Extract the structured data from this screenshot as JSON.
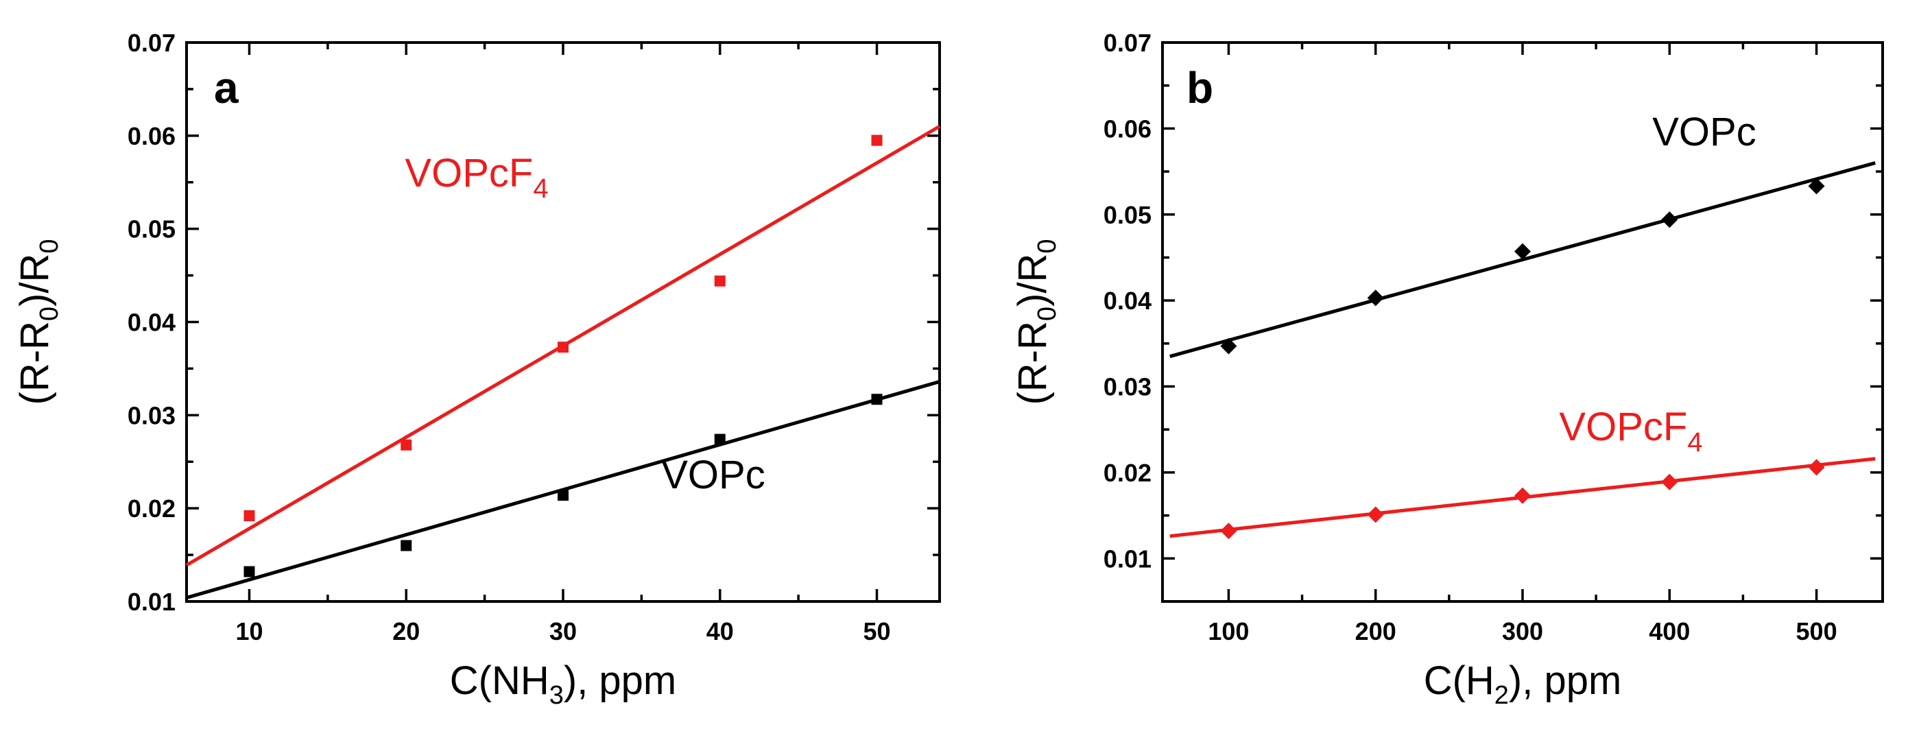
{
  "chart_data": [
    {
      "type": "scatter",
      "panel_label": "a",
      "xlabel": {
        "main": "C(NH",
        "sub": "3",
        "rest": "), ppm"
      },
      "ylabel": {
        "main": "(R-R",
        "sub1": "0",
        "mid": ")/R",
        "sub2": "0"
      },
      "xlim": [
        6,
        54
      ],
      "ylim": [
        0.01,
        0.07
      ],
      "xticks": [
        10,
        20,
        30,
        40,
        50
      ],
      "yticks": [
        0.01,
        0.02,
        0.03,
        0.04,
        0.05,
        0.06,
        0.07
      ],
      "ytick_labels": [
        "0.01",
        "0.02",
        "0.03",
        "0.04",
        "0.05",
        "0.06",
        "0.07"
      ],
      "series": [
        {
          "name": "VOPcF",
          "name_sub": "4",
          "color": "#ee1c1c",
          "marker": "square",
          "x": [
            10,
            20,
            30,
            40,
            50
          ],
          "y": [
            0.0192,
            0.0268,
            0.0373,
            0.0444,
            0.0595
          ],
          "fit": {
            "x": [
              6,
              54
            ],
            "y": [
              0.0139,
              0.061
            ]
          }
        },
        {
          "name": "VOPc",
          "name_sub": "",
          "color": "#000000",
          "marker": "square",
          "x": [
            10,
            20,
            30,
            40,
            50
          ],
          "y": [
            0.0132,
            0.016,
            0.0214,
            0.0274,
            0.0317
          ],
          "fit": {
            "x": [
              6,
              54
            ],
            "y": [
              0.0104,
              0.0336
            ]
          }
        }
      ]
    },
    {
      "type": "scatter",
      "panel_label": "b",
      "xlabel": {
        "main": "C(H",
        "sub": "2",
        "rest": "), ppm"
      },
      "ylabel": {
        "main": "(R-R",
        "sub1": "0",
        "mid": ")/R",
        "sub2": "0"
      },
      "xlim": [
        55,
        545
      ],
      "ylim": [
        0.005,
        0.07
      ],
      "xticks": [
        100,
        200,
        300,
        400,
        500
      ],
      "yticks": [
        0.01,
        0.02,
        0.03,
        0.04,
        0.05,
        0.06,
        0.07
      ],
      "ytick_labels": [
        "0.01",
        "0.02",
        "0.03",
        "0.04",
        "0.05",
        "0.06",
        "0.07"
      ],
      "series": [
        {
          "name": "VOPc",
          "name_sub": "",
          "color": "#000000",
          "marker": "diamond",
          "x": [
            100,
            200,
            300,
            400,
            500
          ],
          "y": [
            0.0347,
            0.0403,
            0.0457,
            0.0494,
            0.0533
          ],
          "fit": {
            "x": [
              60,
              540
            ],
            "y": [
              0.0335,
              0.056
            ]
          }
        },
        {
          "name": "VOPcF",
          "name_sub": "4",
          "color": "#ee1c1c",
          "marker": "diamond",
          "x": [
            100,
            200,
            300,
            400,
            500
          ],
          "y": [
            0.0132,
            0.0151,
            0.0173,
            0.0189,
            0.0206
          ],
          "fit": {
            "x": [
              60,
              540
            ],
            "y": [
              0.0126,
              0.0216
            ]
          }
        }
      ]
    }
  ]
}
